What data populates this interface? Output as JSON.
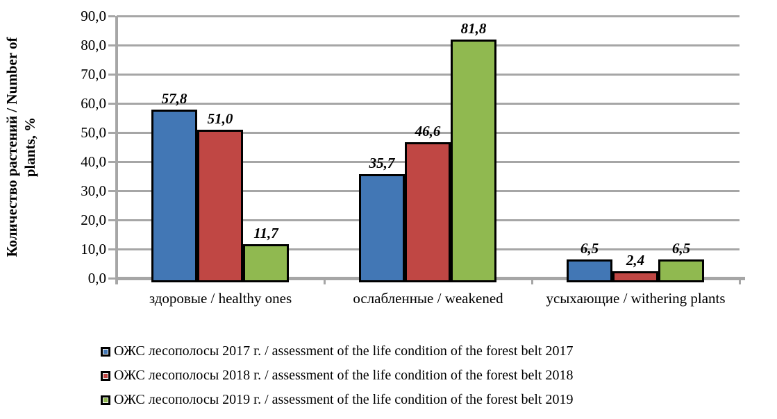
{
  "chart_data": {
    "type": "bar",
    "categories": [
      "здоровые / healthy ones",
      "ослабленные / weakened",
      "усыхающие / withering plants"
    ],
    "series": [
      {
        "name": "ОЖС лесополосы 2017 г. / assessment of the life condition of the forest belt 2017",
        "color": "#4277B5",
        "values": [
          57.8,
          35.7,
          6.5
        ],
        "labels": [
          "57,8",
          "35,7",
          "6,5"
        ]
      },
      {
        "name": "ОЖС лесополосы 2018 г. / assessment of the life condition of the forest belt 2018",
        "color": "#C04744",
        "values": [
          51.0,
          46.6,
          2.4
        ],
        "labels": [
          "51,0",
          "46,6",
          "2,4"
        ]
      },
      {
        "name": "ОЖС лесополосы 2019 г. / assessment of the life condition of the forest belt 2019",
        "color": "#90B950",
        "values": [
          11.7,
          81.8,
          6.5
        ],
        "labels": [
          "11,7",
          "81,8",
          "6,5"
        ]
      }
    ],
    "title": "",
    "xlabel": "",
    "ylabel": "Количество растений / Number of plants, %",
    "ylabel_lines": [
      "Количество растений / Number of",
      "plants, %"
    ],
    "ylim": [
      0,
      90
    ],
    "ytick_step": 10,
    "ytick_labels": [
      "0,0",
      "10,0",
      "20,0",
      "30,0",
      "40,0",
      "50,0",
      "60,0",
      "70,0",
      "80,0",
      "90,0"
    ],
    "grid": true,
    "legend_position": "bottom",
    "colors": {
      "gridline": "#A6A6A6",
      "axis": "#A6A6A6",
      "bar_border": "#000000",
      "text": "#000000",
      "background": "#FFFFFF"
    }
  }
}
